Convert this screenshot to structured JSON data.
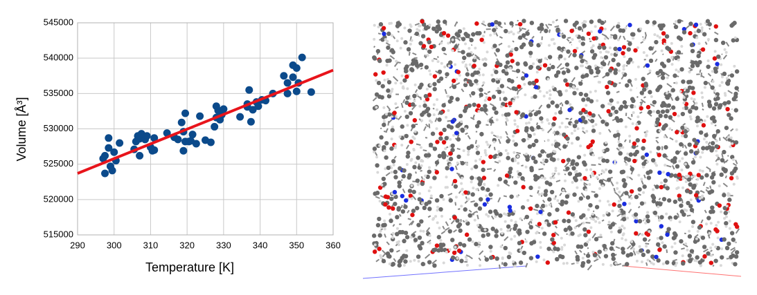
{
  "chart_data": {
    "type": "scatter",
    "x_label": "Temperature [K]",
    "y_label": "Volume [Å³]",
    "xlim": [
      290,
      360
    ],
    "xticks": [
      290,
      300,
      310,
      320,
      330,
      340,
      350,
      360
    ],
    "ylim": [
      515000,
      545000
    ],
    "yticks": [
      515000,
      520000,
      525000,
      530000,
      535000,
      540000,
      545000
    ],
    "grid": true,
    "points": {
      "color": "#0b4a8b",
      "x": [
        297.5,
        297,
        297.5,
        298.5,
        298.5,
        299,
        299.5,
        300,
        300.5,
        301.5,
        305.5,
        306,
        306.5,
        307,
        307,
        307.5,
        308,
        308.5,
        309,
        310,
        310.5,
        311,
        311,
        314.5,
        316.5,
        317.5,
        318.5,
        319,
        319,
        319.5,
        319.5,
        320.5,
        321,
        321.5,
        322.5,
        323.5,
        325,
        326.5,
        327.5,
        328,
        328,
        328.5,
        329,
        329.5,
        330,
        334.5,
        336.5,
        336.5,
        337,
        337.5,
        338,
        339,
        339.5,
        340.5,
        341.5,
        343.5,
        346.5,
        347.5,
        347.5,
        349,
        349,
        350,
        350,
        350.5,
        351.5,
        354
      ],
      "y": [
        523700,
        525800,
        526200,
        528700,
        527300,
        524700,
        524100,
        526700,
        525500,
        528000,
        527100,
        528200,
        529000,
        526200,
        528600,
        529300,
        528900,
        528500,
        529000,
        527400,
        526900,
        528700,
        527000,
        529400,
        528800,
        528500,
        530900,
        529600,
        526900,
        528200,
        532200,
        528200,
        528300,
        529200,
        527900,
        531800,
        528400,
        528100,
        530300,
        531600,
        533200,
        532600,
        531300,
        532000,
        532800,
        531700,
        533100,
        533500,
        535500,
        531000,
        532700,
        533800,
        533200,
        534100,
        534000,
        535000,
        537500,
        536500,
        535000,
        539000,
        537300,
        538600,
        535300,
        536500,
        540100,
        535200
      ]
    },
    "fit": {
      "color": "#e8141b",
      "x": [
        290,
        360
      ],
      "y": [
        523700,
        538300
      ]
    }
  }
}
